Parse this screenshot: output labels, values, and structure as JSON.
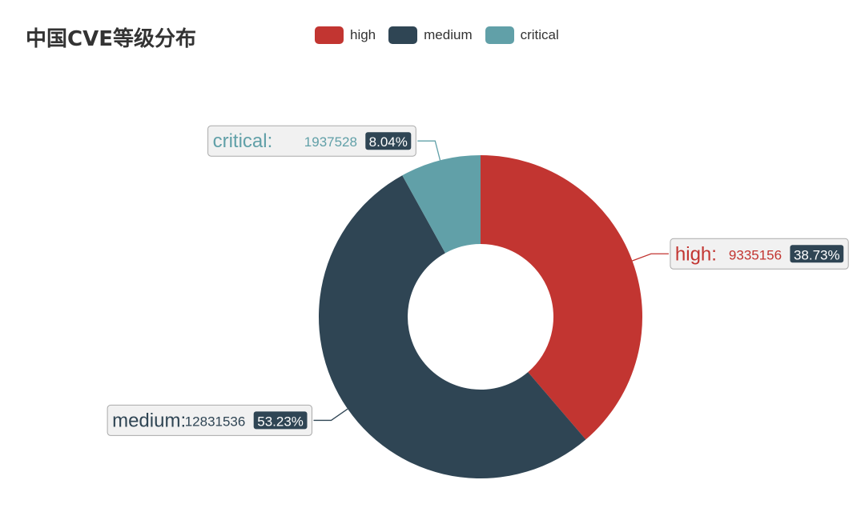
{
  "chart_data": {
    "type": "pie",
    "variant": "donut",
    "title": "中国CVE等级分布",
    "legend_position": "top",
    "slices": [
      {
        "name": "high",
        "value": 9335156,
        "percent": "38.73%",
        "color": "#c23531"
      },
      {
        "name": "medium",
        "value": 12831536,
        "percent": "53.23%",
        "color": "#2f4554"
      },
      {
        "name": "critical",
        "value": 1937528,
        "percent": "8.04%",
        "color": "#61a0a8"
      }
    ]
  },
  "colors": {
    "label_box_bg": "#f1f1f1",
    "label_box_border": "#aaaaaa",
    "percent_badge_bg": "#2f4554"
  }
}
